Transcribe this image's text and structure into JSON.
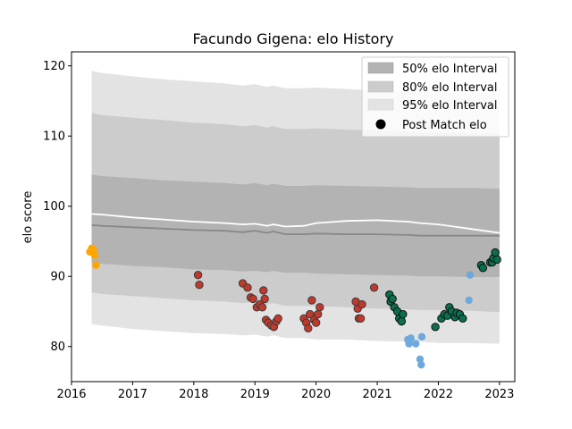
{
  "chart_data": {
    "type": "area",
    "title": "Facundo Gigena: elo History",
    "xlabel": "",
    "ylabel": "elo score",
    "xlim": [
      2016.0,
      2023.25
    ],
    "ylim": [
      75.0,
      122.0
    ],
    "xticks": [
      2016,
      2017,
      2018,
      2019,
      2020,
      2021,
      2022,
      2023
    ],
    "yticks": [
      80,
      90,
      100,
      110,
      120
    ],
    "grid": false,
    "legend_position": "top-right",
    "legend": {
      "band50": "50% elo Interval",
      "band80": "80% elo Interval",
      "band95": "95% elo Interval",
      "points": "Post Match elo"
    },
    "colors": {
      "band50": "#b3b3b3",
      "band80": "#cccccc",
      "band95": "#e3e3e3",
      "median_line": "#888888",
      "mean_line": "#ffffff",
      "orange": "#ffa500",
      "red": "#c0392b",
      "green": "#0b6e4f",
      "blue": "#6fa8dc"
    },
    "bands": {
      "x": [
        2016.33,
        2016.5,
        2017.0,
        2017.5,
        2018.0,
        2018.5,
        2018.8,
        2019.0,
        2019.2,
        2019.3,
        2019.5,
        2019.8,
        2020.0,
        2020.5,
        2021.0,
        2021.5,
        2021.7,
        2022.0,
        2022.5,
        2023.0
      ],
      "lo95": [
        83.2,
        83.0,
        82.5,
        82.2,
        81.9,
        81.8,
        81.6,
        81.7,
        81.4,
        81.6,
        81.2,
        81.2,
        81.0,
        81.0,
        80.8,
        80.7,
        80.7,
        80.5,
        80.5,
        80.4
      ],
      "lo80": [
        87.7,
        87.5,
        87.2,
        86.9,
        86.6,
        86.4,
        86.2,
        86.3,
        86.0,
        86.2,
        85.8,
        85.8,
        85.8,
        85.6,
        85.4,
        85.3,
        85.2,
        85.2,
        85.1,
        84.9
      ],
      "lo50": [
        91.9,
        91.8,
        91.5,
        91.3,
        91.0,
        90.9,
        90.7,
        90.8,
        90.6,
        90.8,
        90.5,
        90.5,
        90.4,
        90.3,
        90.2,
        90.1,
        90.0,
        90.0,
        89.9,
        89.9
      ],
      "median": [
        97.3,
        97.2,
        97.0,
        96.8,
        96.6,
        96.5,
        96.3,
        96.5,
        96.2,
        96.4,
        96.0,
        96.0,
        96.1,
        96.0,
        96.0,
        95.9,
        95.8,
        95.8,
        95.8,
        95.8
      ],
      "hi50": [
        104.5,
        104.3,
        104.0,
        103.7,
        103.5,
        103.3,
        103.1,
        103.3,
        103.0,
        103.2,
        102.9,
        102.9,
        103.0,
        102.9,
        102.8,
        102.7,
        102.6,
        102.6,
        102.6,
        102.5
      ],
      "hi80": [
        113.3,
        113.0,
        112.6,
        112.3,
        111.9,
        111.7,
        111.4,
        111.6,
        111.2,
        111.4,
        111.0,
        111.0,
        111.1,
        110.9,
        110.8,
        110.6,
        110.5,
        110.5,
        110.4,
        110.3
      ],
      "hi95": [
        119.3,
        119.0,
        118.5,
        118.1,
        117.8,
        117.5,
        117.2,
        117.4,
        117.0,
        117.2,
        116.8,
        116.8,
        116.9,
        116.7,
        116.5,
        116.3,
        116.2,
        116.2,
        116.1,
        116.0
      ]
    },
    "mean_line": {
      "x": [
        2016.33,
        2016.5,
        2017.0,
        2017.5,
        2018.0,
        2018.5,
        2018.8,
        2019.0,
        2019.2,
        2019.3,
        2019.5,
        2019.8,
        2020.0,
        2020.5,
        2021.0,
        2021.5,
        2021.7,
        2022.0,
        2022.5,
        2023.0
      ],
      "y": [
        98.9,
        98.8,
        98.4,
        98.1,
        97.8,
        97.6,
        97.4,
        97.5,
        97.2,
        97.4,
        97.1,
        97.2,
        97.6,
        97.9,
        98.0,
        97.8,
        97.6,
        97.4,
        96.8,
        96.2
      ]
    },
    "series": [
      {
        "group": "orange",
        "points": [
          [
            2016.3,
            93.5
          ],
          [
            2016.33,
            94.0
          ],
          [
            2016.36,
            93.8
          ],
          [
            2016.38,
            93.0
          ],
          [
            2016.4,
            91.6
          ]
        ]
      },
      {
        "group": "red",
        "points": [
          [
            2018.07,
            90.2
          ],
          [
            2018.09,
            88.8
          ],
          [
            2018.8,
            89.0
          ],
          [
            2018.88,
            88.4
          ],
          [
            2018.93,
            87.0
          ],
          [
            2018.97,
            86.8
          ],
          [
            2019.03,
            85.6
          ],
          [
            2019.08,
            86.0
          ],
          [
            2019.12,
            85.6
          ],
          [
            2019.14,
            88.0
          ],
          [
            2019.16,
            86.8
          ],
          [
            2019.18,
            83.8
          ],
          [
            2019.22,
            83.4
          ],
          [
            2019.27,
            83.0
          ],
          [
            2019.31,
            82.8
          ],
          [
            2019.35,
            83.6
          ],
          [
            2019.38,
            84.0
          ],
          [
            2019.8,
            84.0
          ],
          [
            2019.84,
            83.4
          ],
          [
            2019.87,
            82.6
          ],
          [
            2019.9,
            84.6
          ],
          [
            2019.93,
            86.6
          ],
          [
            2019.97,
            83.8
          ],
          [
            2020.0,
            83.4
          ],
          [
            2020.03,
            84.6
          ],
          [
            2020.06,
            85.6
          ],
          [
            2020.65,
            86.4
          ],
          [
            2020.68,
            85.4
          ],
          [
            2020.7,
            84.0
          ],
          [
            2020.73,
            84.0
          ],
          [
            2020.75,
            86.0
          ],
          [
            2020.95,
            88.4
          ]
        ]
      },
      {
        "group": "green",
        "points": [
          [
            2021.2,
            87.4
          ],
          [
            2021.22,
            86.4
          ],
          [
            2021.25,
            86.8
          ],
          [
            2021.28,
            85.6
          ],
          [
            2021.33,
            85.0
          ],
          [
            2021.36,
            84.0
          ],
          [
            2021.4,
            83.6
          ],
          [
            2021.42,
            84.6
          ],
          [
            2021.95,
            82.8
          ],
          [
            2022.05,
            84.0
          ],
          [
            2022.1,
            84.6
          ],
          [
            2022.15,
            84.4
          ],
          [
            2022.18,
            85.6
          ],
          [
            2022.22,
            85.0
          ],
          [
            2022.27,
            84.2
          ],
          [
            2022.3,
            84.8
          ],
          [
            2022.35,
            84.6
          ],
          [
            2022.4,
            84.0
          ],
          [
            2022.7,
            91.6
          ],
          [
            2022.73,
            91.2
          ],
          [
            2022.85,
            92.0
          ],
          [
            2022.88,
            92.0
          ],
          [
            2022.9,
            92.6
          ],
          [
            2022.93,
            93.4
          ],
          [
            2022.96,
            92.4
          ]
        ]
      },
      {
        "group": "blue",
        "points": [
          [
            2021.5,
            81.0
          ],
          [
            2021.52,
            80.4
          ],
          [
            2021.55,
            81.2
          ],
          [
            2021.63,
            80.4
          ],
          [
            2021.7,
            78.2
          ],
          [
            2021.72,
            77.4
          ],
          [
            2021.73,
            81.4
          ],
          [
            2022.52,
            90.2
          ],
          [
            2022.5,
            86.6
          ]
        ]
      }
    ]
  }
}
